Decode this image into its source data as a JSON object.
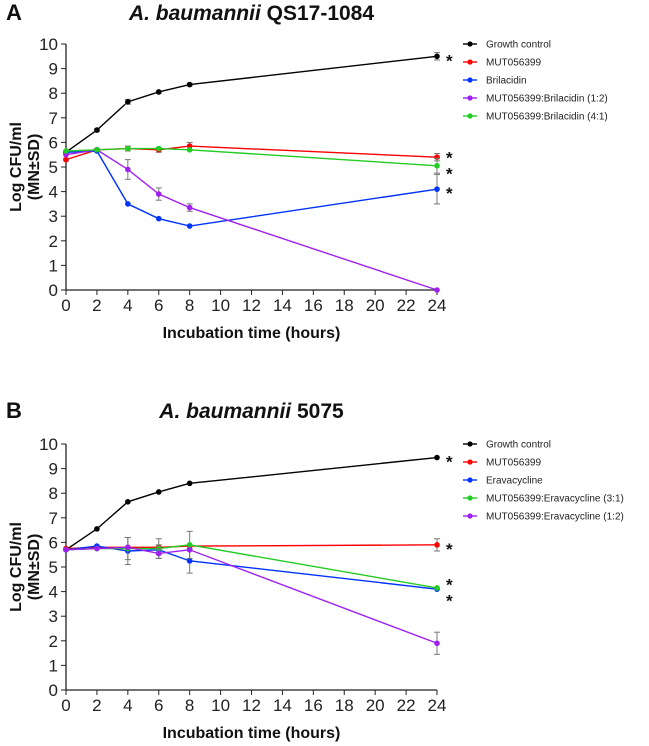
{
  "chart_data": [
    {
      "type": "line",
      "panel": "A",
      "title_italic": "A. baumannii",
      "title_rest": "QS17-1084",
      "xlabel": "Incubation time (hours)",
      "ylabel": [
        "Log CFU/ml",
        "(MN±SD)"
      ],
      "xlim": [
        0,
        24
      ],
      "ylim": [
        0,
        10
      ],
      "xticks": [
        0,
        2,
        4,
        6,
        8,
        10,
        12,
        14,
        16,
        18,
        20,
        22,
        24
      ],
      "yticks": [
        0,
        1,
        2,
        3,
        4,
        5,
        6,
        7,
        8,
        9,
        10
      ],
      "legend_position": "right",
      "x": [
        0,
        2,
        4,
        6,
        8,
        24
      ],
      "series": [
        {
          "name": "Growth control",
          "color": "#000000",
          "values": [
            5.6,
            6.5,
            7.65,
            8.05,
            8.35,
            9.5
          ],
          "errors": [
            0.05,
            0.05,
            0.1,
            0.05,
            0.05,
            0.15
          ],
          "significant": true
        },
        {
          "name": "MUT056399",
          "color": "#ff0000",
          "values": [
            5.3,
            5.7,
            5.75,
            5.7,
            5.85,
            5.4
          ],
          "errors": [
            0.05,
            0.05,
            0.1,
            0.1,
            0.15,
            0.15
          ],
          "significant": true
        },
        {
          "name": "Brilacidin",
          "color": "#0033ff",
          "values": [
            5.6,
            5.65,
            3.5,
            2.9,
            2.6,
            4.1
          ],
          "errors": [
            0,
            0,
            0,
            0,
            0,
            0.6
          ],
          "significant": true
        },
        {
          "name": "MUT056399:Brilacidin (1:2)",
          "color": "#a020f0",
          "values": [
            5.5,
            5.7,
            4.9,
            3.9,
            3.35,
            0
          ],
          "errors": [
            0,
            0,
            0.4,
            0.25,
            0.15,
            0
          ],
          "significant": false
        },
        {
          "name": "MUT056399:Brilacidin (4:1)",
          "color": "#22cc22",
          "values": [
            5.65,
            5.7,
            5.75,
            5.75,
            5.7,
            5.05
          ],
          "errors": [
            0,
            0,
            0,
            0,
            0,
            0.3
          ],
          "significant": true
        }
      ],
      "annotation": "*"
    },
    {
      "type": "line",
      "panel": "B",
      "title_italic": "A. baumannii",
      "title_rest": "5075",
      "xlabel": "Incubation time (hours)",
      "ylabel": [
        "Log CFU/ml",
        "(MN±SD)"
      ],
      "xlim": [
        0,
        24
      ],
      "ylim": [
        0,
        10
      ],
      "xticks": [
        0,
        2,
        4,
        6,
        8,
        10,
        12,
        14,
        16,
        18,
        20,
        22,
        24
      ],
      "yticks": [
        0,
        1,
        2,
        3,
        4,
        5,
        6,
        7,
        8,
        9,
        10
      ],
      "legend_position": "right",
      "x": [
        0,
        2,
        4,
        6,
        8,
        24
      ],
      "series": [
        {
          "name": "Growth control",
          "color": "#000000",
          "values": [
            5.7,
            6.55,
            7.65,
            8.05,
            8.4,
            9.45
          ],
          "errors": [
            0,
            0,
            0,
            0,
            0,
            0
          ],
          "significant": true
        },
        {
          "name": "MUT056399",
          "color": "#ff0000",
          "values": [
            5.75,
            5.8,
            5.8,
            5.8,
            5.85,
            5.9
          ],
          "errors": [
            0,
            0,
            0,
            0,
            0,
            0.25
          ],
          "significant": true
        },
        {
          "name": "Eravacycline",
          "color": "#0033ff",
          "values": [
            5.7,
            5.85,
            5.65,
            5.7,
            5.25,
            4.1
          ],
          "errors": [
            0,
            0,
            0.55,
            0.2,
            0.5,
            0
          ],
          "significant": true
        },
        {
          "name": "MUT056399:Eravacycline (3:1)",
          "color": "#22cc22",
          "values": [
            5.7,
            5.75,
            5.75,
            5.75,
            5.9,
            4.15
          ],
          "errors": [
            0,
            0,
            0.45,
            0.4,
            0.55,
            0
          ],
          "significant": true
        },
        {
          "name": "MUT056399:Eravacycline (1:2)",
          "color": "#a020f0",
          "values": [
            5.7,
            5.75,
            5.8,
            5.55,
            5.7,
            1.9
          ],
          "errors": [
            0,
            0,
            0,
            0.2,
            0,
            0.45
          ],
          "significant": false
        }
      ],
      "annotation": "*"
    }
  ]
}
